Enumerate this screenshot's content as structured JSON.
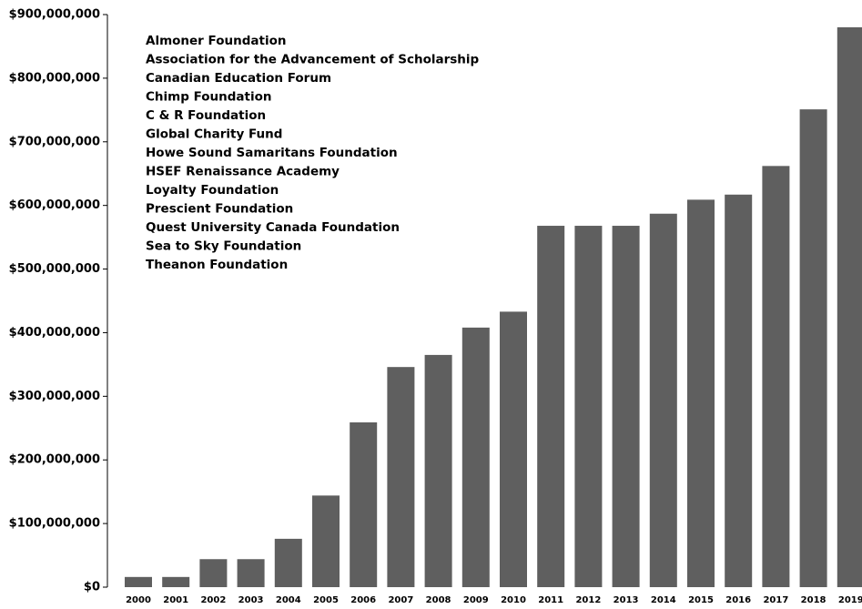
{
  "chart_data": {
    "type": "bar",
    "categories": [
      "2000",
      "2001",
      "2002",
      "2003",
      "2004",
      "2005",
      "2006",
      "2007",
      "2008",
      "2009",
      "2010",
      "2011",
      "2012",
      "2013",
      "2014",
      "2015",
      "2016",
      "2017",
      "2018",
      "2019"
    ],
    "values": [
      16000000,
      16000000,
      44000000,
      44000000,
      76000000,
      144000000,
      259000000,
      346000000,
      365000000,
      408000000,
      433000000,
      568000000,
      568000000,
      568000000,
      587000000,
      609000000,
      617000000,
      662000000,
      751000000,
      880000000
    ],
    "color": "#5f5f5f",
    "ylim": [
      0,
      900000000
    ],
    "yticks": [
      {
        "value": 0,
        "label": "$0"
      },
      {
        "value": 100000000,
        "label": "$100,000,000"
      },
      {
        "value": 200000000,
        "label": "$200,000,000"
      },
      {
        "value": 300000000,
        "label": "$300,000,000"
      },
      {
        "value": 400000000,
        "label": "$400,000,000"
      },
      {
        "value": 500000000,
        "label": "$500,000,000"
      },
      {
        "value": 600000000,
        "label": "$600,000,000"
      },
      {
        "value": 700000000,
        "label": "$700,000,000"
      },
      {
        "value": 800000000,
        "label": "$800,000,000"
      },
      {
        "value": 900000000,
        "label": "$900,000,000"
      }
    ],
    "grid": false,
    "annotations": [
      "Almoner Foundation",
      "Association for the Advancement of Scholarship",
      "Canadian Education Forum",
      "Chimp Foundation",
      "C & R Foundation",
      "Global Charity Fund",
      "Howe Sound Samaritans Foundation",
      "HSEF Renaissance Academy",
      "Loyalty Foundation",
      "Prescient Foundation",
      "Quest University Canada Foundation",
      "Sea to Sky Foundation",
      "Theanon Foundation"
    ]
  }
}
